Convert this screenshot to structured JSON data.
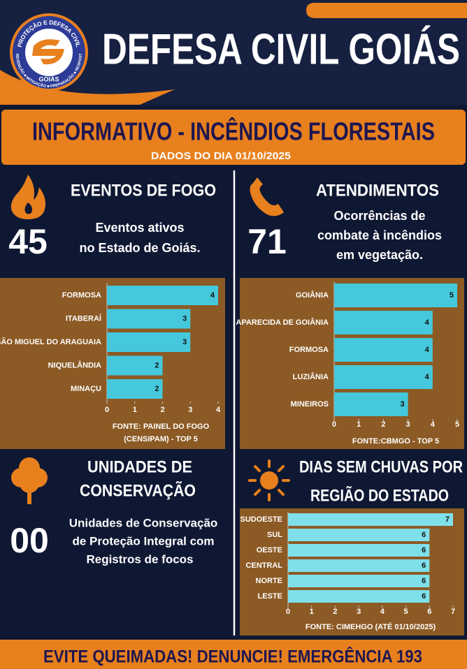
{
  "header": {
    "title": "DEFESA CIVIL GOIÁS",
    "logo": {
      "ring_top": "PROTEÇÃO E DEFESA CIVIL",
      "ring_bottom": "PREVENÇÃO ■ MITIGAÇÃO ■ PREPARAÇÃO ■ RESPOSTA",
      "state": "GOIÁS"
    }
  },
  "banner": {
    "title": "INFORMATIVO - INCÊNDIOS FLORESTAIS",
    "date": "DADOS DO DIA 01/10/2025"
  },
  "sections": [
    {
      "title": [
        "EVENTOS DE FOGO"
      ],
      "number": "45",
      "text": [
        "Eventos ativos",
        "no Estado de Goiás."
      ]
    },
    {
      "title": [
        "ATENDIMENTOS"
      ],
      "number": "71",
      "text": [
        "Ocorrências de",
        "combate à incêndios",
        "em vegetação."
      ]
    },
    {
      "title": [
        "UNIDADES DE",
        "CONSERVAÇÃO"
      ],
      "number": "00",
      "text": [
        "Unidades de Conservação",
        "de Proteção Integral com",
        "Registros de focos"
      ]
    },
    {
      "title": [
        "DIAS SEM CHUVAS POR",
        "REGIÃO DO ESTADO"
      ]
    }
  ],
  "chart_data": [
    {
      "type": "bar",
      "orientation": "horizontal",
      "color": "#45c8dc",
      "categories": [
        "FORMOSA",
        "ITABERAÍ",
        "SÃO MIGUEL DO ARAGUAIA",
        "NIQUELÂNDIA",
        "MINAÇU"
      ],
      "values": [
        4,
        3,
        3,
        2,
        2
      ],
      "xlim": [
        0,
        4
      ],
      "xticks": [
        0,
        1,
        2,
        3,
        4
      ],
      "source": [
        "FONTE: PAINEL DO FOGO",
        "(CENSIPAM) - TOP 5"
      ]
    },
    {
      "type": "bar",
      "orientation": "horizontal",
      "color": "#45c8dc",
      "categories": [
        "GOIÂNIA",
        "APARECIDA DE GOIÂNIA",
        "FORMOSA",
        "LUZIÂNIA",
        "MINEIROS"
      ],
      "values": [
        5,
        4,
        4,
        4,
        3
      ],
      "xlim": [
        0,
        5
      ],
      "xticks": [
        0,
        1,
        2,
        3,
        4,
        5
      ],
      "source": [
        "FONTE:CBMGO - TOP 5"
      ]
    },
    {
      "type": "bar",
      "orientation": "horizontal",
      "color": "#7fe0ea",
      "categories": [
        "SUDOESTE",
        "SUL",
        "OESTE",
        "CENTRAL",
        "NORTE",
        "LESTE"
      ],
      "values": [
        7,
        6,
        6,
        6,
        6,
        6
      ],
      "xlim": [
        0,
        7
      ],
      "xticks": [
        0,
        1,
        2,
        3,
        4,
        5,
        6,
        7
      ],
      "source": [
        "FONTE: CIMEHGO (ATÉ 01/10/2025)"
      ]
    }
  ],
  "footer": "EVITE QUEIMADAS! DENUNCIE! EMERGÊNCIA 193"
}
